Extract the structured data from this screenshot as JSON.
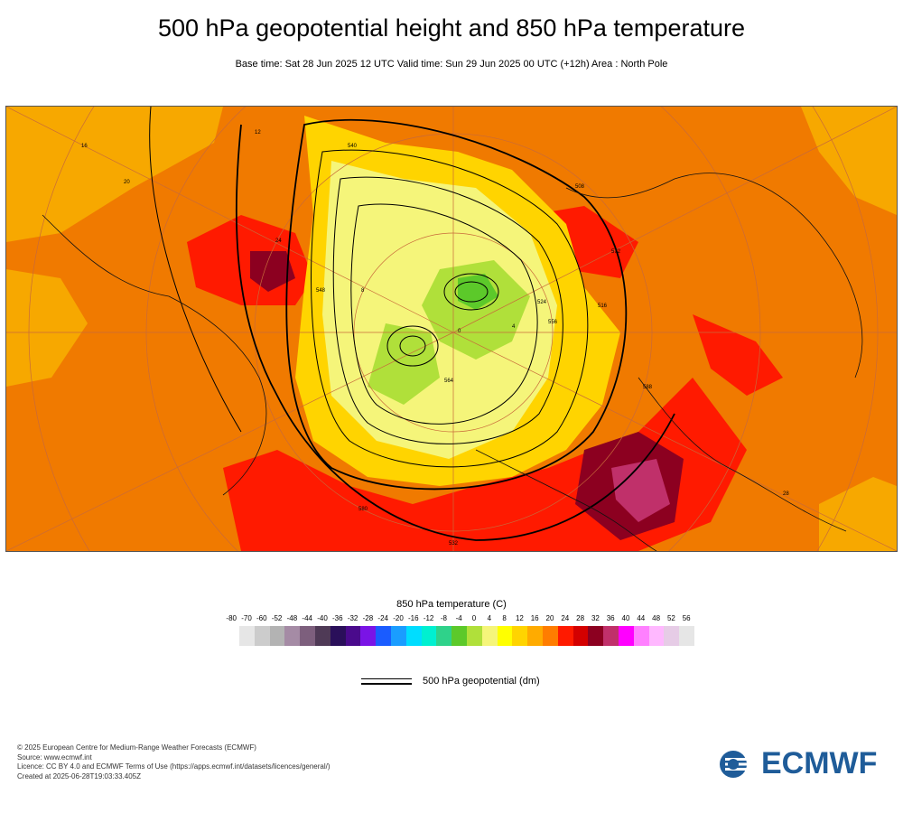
{
  "header": {
    "title": "500 hPa geopotential height and 850 hPa temperature",
    "subtitle": "Base time: Sat 28 Jun 2025 12 UTC Valid time: Sun 29 Jun 2025 00 UTC (+12h) Area : North Pole"
  },
  "map": {
    "contour_labels": [
      "540",
      "548",
      "556",
      "564",
      "572",
      "580",
      "588",
      "524",
      "532",
      "508",
      "516"
    ],
    "temp_labels": [
      "16",
      "12",
      "20",
      "24",
      "28",
      "8",
      "4",
      "0"
    ]
  },
  "legend": {
    "temperature_title": "850 hPa temperature (C)",
    "tick_labels": [
      "-80",
      "-70",
      "-60",
      "-52",
      "-48",
      "-44",
      "-40",
      "-36",
      "-32",
      "-28",
      "-24",
      "-20",
      "-16",
      "-12",
      "-8",
      "-4",
      "0",
      "4",
      "8",
      "12",
      "16",
      "20",
      "24",
      "28",
      "32",
      "36",
      "40",
      "44",
      "48",
      "52",
      "56"
    ],
    "colors": [
      "#e6e6e6",
      "#cccccc",
      "#b3b3b3",
      "#a58ba5",
      "#7d5f7d",
      "#4f3a56",
      "#2a0f5a",
      "#4a0a8c",
      "#7a14e6",
      "#1a5cff",
      "#1a9dff",
      "#00ddff",
      "#00f0d0",
      "#2fd28a",
      "#5cc92a",
      "#b0e03a",
      "#f5f57a",
      "#ffff00",
      "#ffd400",
      "#ffab00",
      "#ff7d00",
      "#ff1a00",
      "#d40000",
      "#8c0020",
      "#c0306a",
      "#ff00ff",
      "#ff80ff",
      "#ffb8ff",
      "#e6cce6",
      "#e6e6e6"
    ],
    "geopotential_label": "500 hPa geopotential (dm)"
  },
  "footer": {
    "line1": "© 2025 European Centre for Medium-Range Weather Forecasts (ECMWF)",
    "line2": "Source: www.ecmwf.int",
    "line3": "Licence: CC BY 4.0 and ECMWF Terms of Use (https://apps.ecmwf.int/datasets/licences/general/)",
    "line4": "Created at 2025-06-28T19:03:33.405Z"
  },
  "logo": {
    "text": "ECMWF",
    "color": "#1f5c99"
  }
}
